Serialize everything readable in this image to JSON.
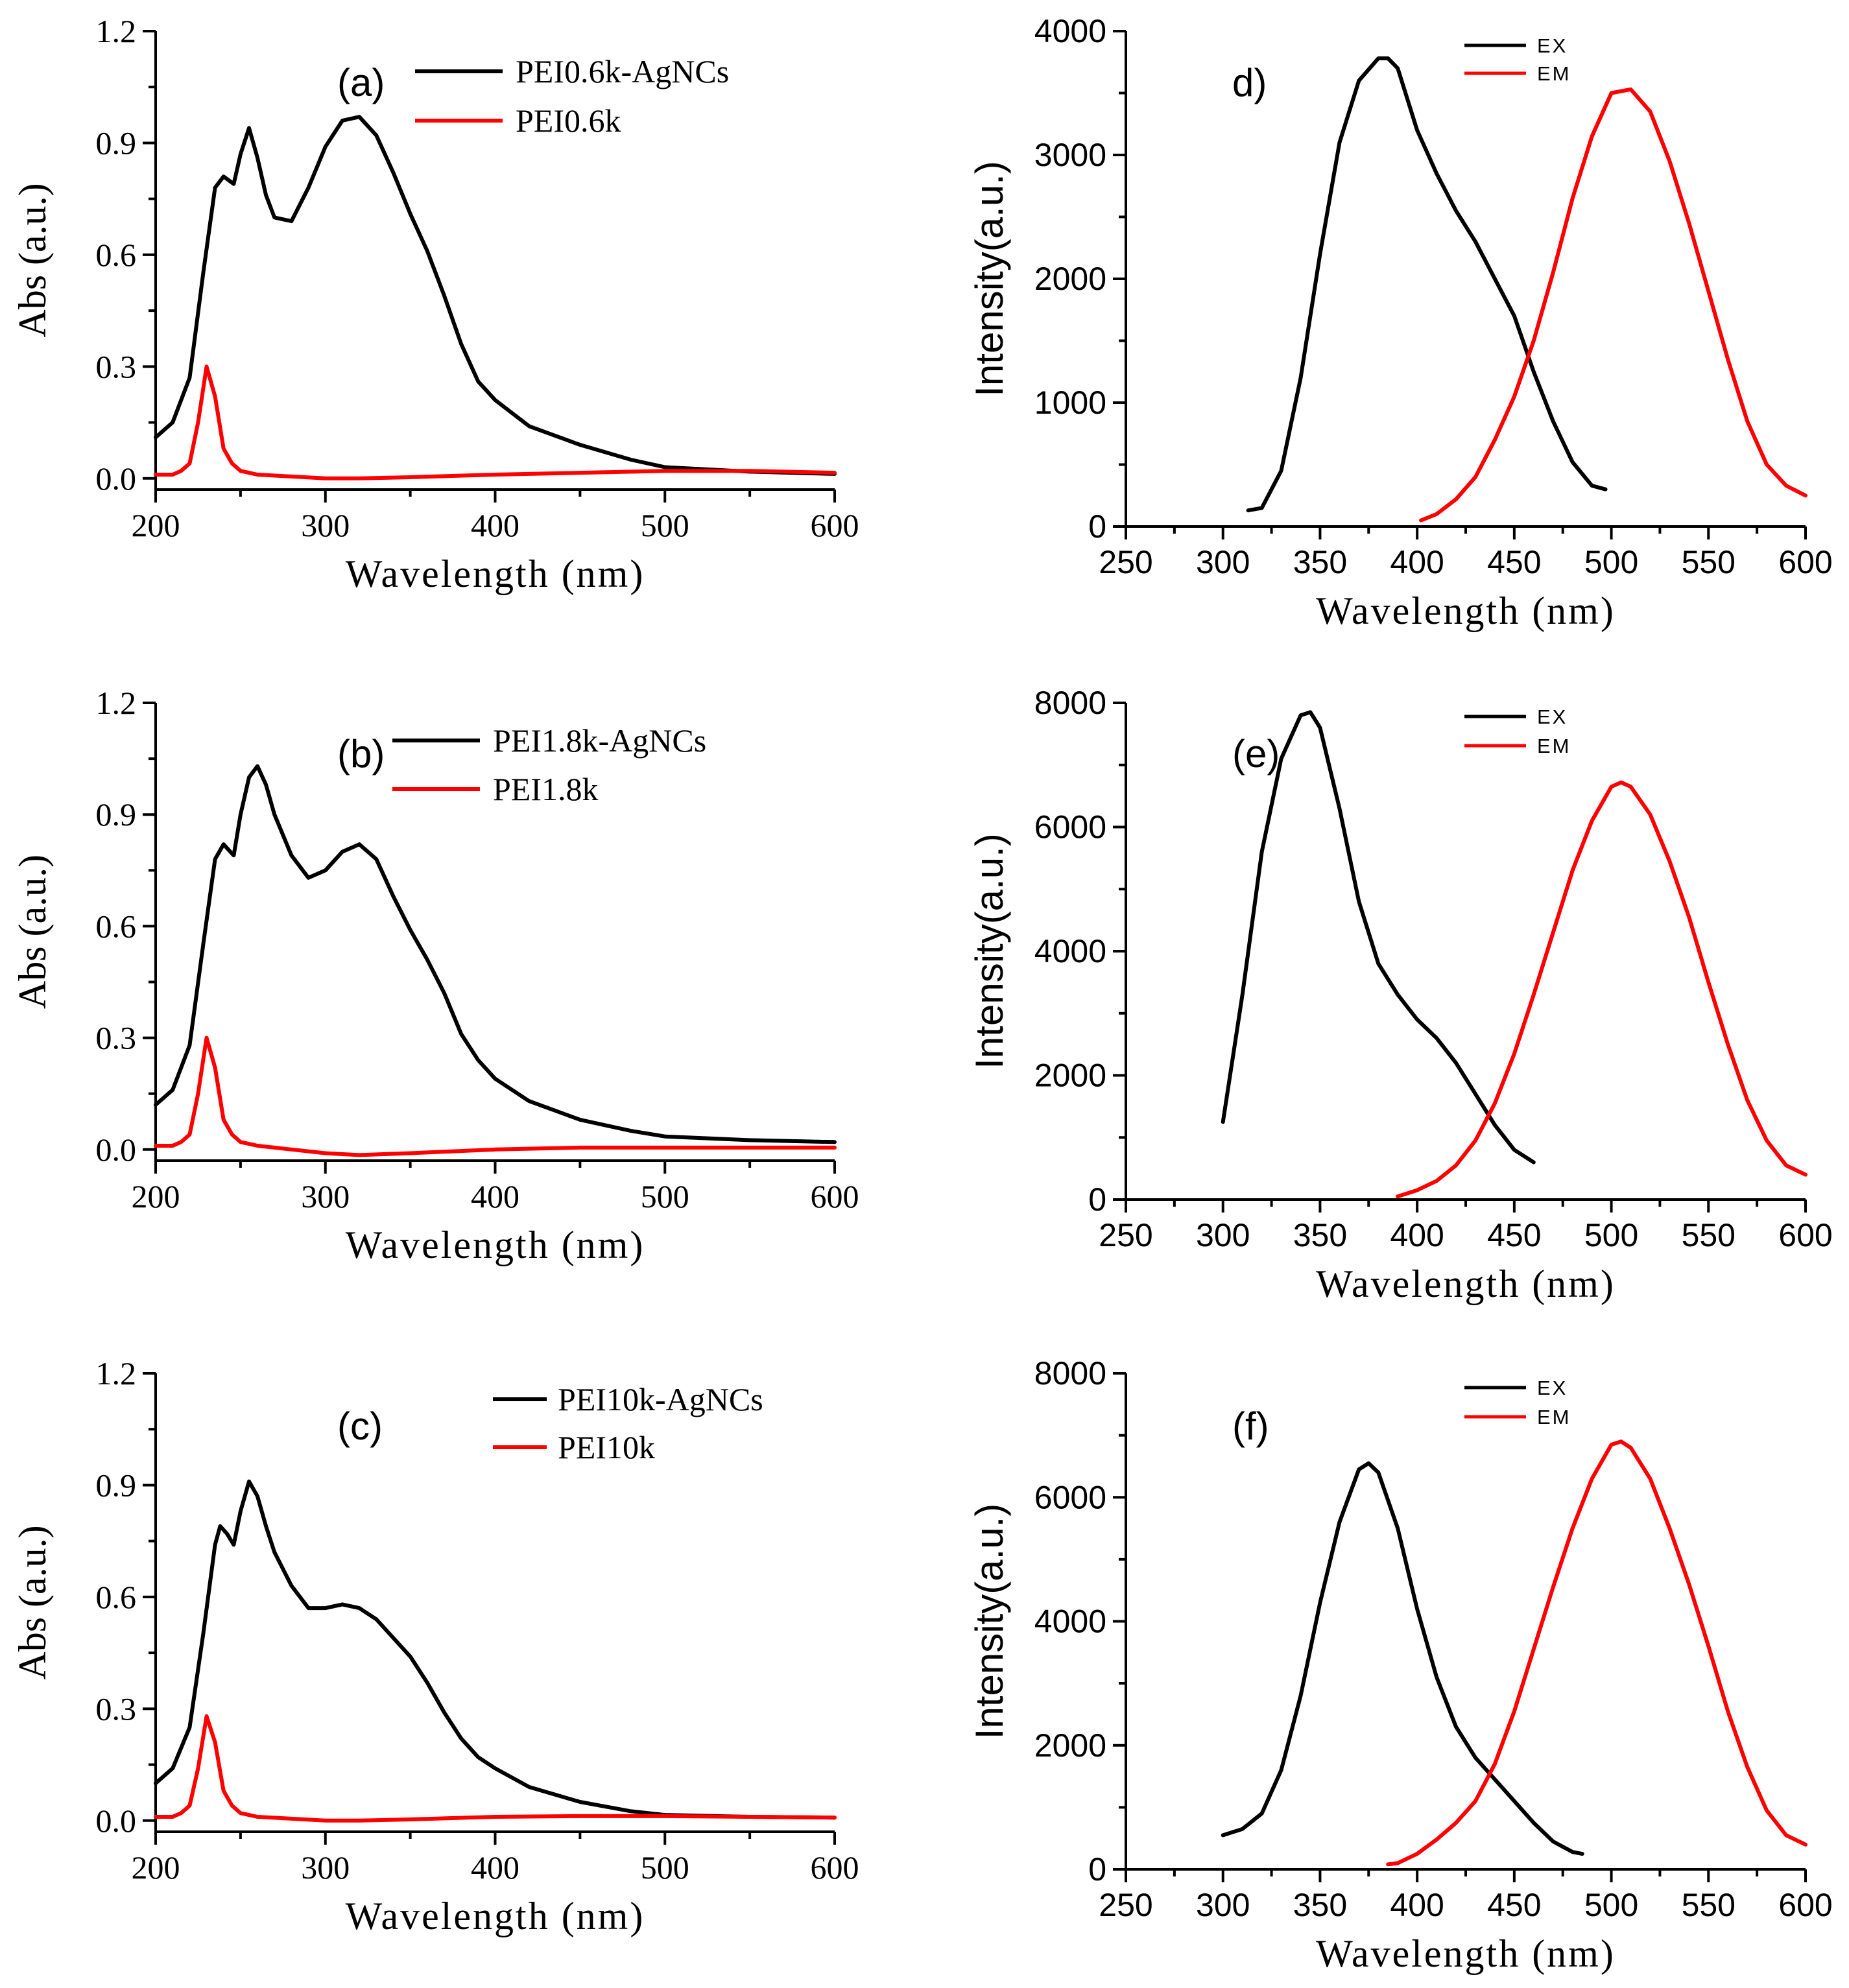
{
  "colors": {
    "black_series": "#000000",
    "red_series": "#ff0000",
    "axis": "#000000"
  },
  "chart_data": [
    {
      "id": "a",
      "type": "line",
      "label": "(a)",
      "xlabel": "Wavelength (nm)",
      "ylabel": "Abs (a.u.)",
      "xlim": [
        200,
        600
      ],
      "ylim": [
        -0.03,
        1.2
      ],
      "xticks": [
        "200",
        "300",
        "400",
        "500",
        "600"
      ],
      "yticks": [
        "0.0",
        "0.3",
        "0.6",
        "0.9",
        "1.2"
      ],
      "legend_style": "big",
      "series": [
        {
          "name": "PEI0.6k-AgNCs",
          "color": "black",
          "x": [
            200,
            210,
            220,
            228,
            235,
            240,
            246,
            250,
            255,
            260,
            265,
            270,
            280,
            290,
            300,
            310,
            320,
            330,
            340,
            350,
            360,
            370,
            380,
            390,
            400,
            420,
            450,
            480,
            500,
            550,
            600
          ],
          "y": [
            0.11,
            0.15,
            0.27,
            0.55,
            0.78,
            0.81,
            0.79,
            0.87,
            0.94,
            0.86,
            0.76,
            0.7,
            0.69,
            0.78,
            0.89,
            0.96,
            0.97,
            0.92,
            0.82,
            0.71,
            0.61,
            0.49,
            0.36,
            0.26,
            0.21,
            0.14,
            0.09,
            0.05,
            0.03,
            0.018,
            0.012
          ]
        },
        {
          "name": "PEI0.6k",
          "color": "red",
          "x": [
            200,
            210,
            215,
            220,
            225,
            230,
            235,
            240,
            245,
            250,
            260,
            280,
            300,
            320,
            350,
            400,
            450,
            500,
            550,
            600
          ],
          "y": [
            0.01,
            0.01,
            0.02,
            0.04,
            0.15,
            0.3,
            0.22,
            0.08,
            0.04,
            0.02,
            0.01,
            0.005,
            0.0,
            0.0,
            0.003,
            0.01,
            0.015,
            0.02,
            0.02,
            0.015
          ]
        }
      ]
    },
    {
      "id": "b",
      "type": "line",
      "label": "(b)",
      "xlabel": "Wavelength (nm)",
      "ylabel": "Abs (a.u.)",
      "xlim": [
        200,
        600
      ],
      "ylim": [
        -0.03,
        1.2
      ],
      "xticks": [
        "200",
        "300",
        "400",
        "500",
        "600"
      ],
      "yticks": [
        "0.0",
        "0.3",
        "0.6",
        "0.9",
        "1.2"
      ],
      "legend_style": "big",
      "series": [
        {
          "name": "PEI1.8k-AgNCs",
          "color": "black",
          "x": [
            200,
            210,
            220,
            228,
            235,
            240,
            246,
            250,
            255,
            260,
            265,
            270,
            280,
            290,
            300,
            310,
            320,
            330,
            340,
            350,
            360,
            370,
            380,
            390,
            400,
            420,
            450,
            480,
            500,
            550,
            600
          ],
          "y": [
            0.12,
            0.16,
            0.28,
            0.55,
            0.78,
            0.82,
            0.79,
            0.9,
            1.0,
            1.03,
            0.98,
            0.9,
            0.79,
            0.73,
            0.75,
            0.8,
            0.82,
            0.78,
            0.68,
            0.59,
            0.51,
            0.42,
            0.31,
            0.24,
            0.19,
            0.13,
            0.08,
            0.05,
            0.035,
            0.025,
            0.02
          ]
        },
        {
          "name": "PEI1.8k",
          "color": "red",
          "x": [
            200,
            210,
            215,
            220,
            225,
            230,
            235,
            240,
            245,
            250,
            260,
            280,
            300,
            320,
            350,
            400,
            450,
            500,
            550,
            600
          ],
          "y": [
            0.01,
            0.01,
            0.02,
            0.04,
            0.15,
            0.3,
            0.22,
            0.08,
            0.04,
            0.02,
            0.01,
            0.0,
            -0.01,
            -0.015,
            -0.01,
            0.0,
            0.005,
            0.005,
            0.005,
            0.005
          ]
        }
      ]
    },
    {
      "id": "c",
      "type": "line",
      "label": "(c)",
      "xlabel": "Wavelength (nm)",
      "ylabel": "Abs (a.u.)",
      "xlim": [
        200,
        600
      ],
      "ylim": [
        -0.03,
        1.2
      ],
      "xticks": [
        "200",
        "300",
        "400",
        "500",
        "600"
      ],
      "yticks": [
        "0.0",
        "0.3",
        "0.6",
        "0.9",
        "1.2"
      ],
      "legend_style": "big",
      "series": [
        {
          "name": "PEI10k-AgNCs",
          "color": "black",
          "x": [
            200,
            210,
            220,
            228,
            235,
            238,
            242,
            246,
            250,
            255,
            260,
            265,
            270,
            280,
            290,
            300,
            310,
            320,
            330,
            340,
            350,
            360,
            370,
            380,
            390,
            400,
            420,
            450,
            480,
            500,
            550,
            600
          ],
          "y": [
            0.1,
            0.14,
            0.25,
            0.5,
            0.74,
            0.79,
            0.77,
            0.74,
            0.83,
            0.91,
            0.87,
            0.79,
            0.72,
            0.63,
            0.57,
            0.57,
            0.58,
            0.57,
            0.54,
            0.49,
            0.44,
            0.37,
            0.29,
            0.22,
            0.17,
            0.14,
            0.09,
            0.05,
            0.025,
            0.015,
            0.01,
            0.008
          ]
        },
        {
          "name": "PEI10k",
          "color": "red",
          "x": [
            200,
            210,
            215,
            220,
            225,
            230,
            235,
            240,
            245,
            250,
            260,
            280,
            300,
            320,
            350,
            400,
            450,
            500,
            550,
            600
          ],
          "y": [
            0.01,
            0.01,
            0.02,
            0.04,
            0.14,
            0.28,
            0.21,
            0.08,
            0.04,
            0.02,
            0.01,
            0.005,
            0.0,
            0.0,
            0.003,
            0.01,
            0.012,
            0.012,
            0.01,
            0.008
          ]
        }
      ]
    },
    {
      "id": "d",
      "type": "line",
      "label": "d)",
      "xlabel": "Wavelength (nm)",
      "ylabel": "Intensity(a.u.)",
      "xlim": [
        250,
        600
      ],
      "ylim": [
        0,
        4000
      ],
      "xticks": [
        "250",
        "300",
        "350",
        "400",
        "450",
        "500",
        "550",
        "600"
      ],
      "yticks": [
        "0",
        "1000",
        "2000",
        "3000",
        "4000"
      ],
      "legend_style": "small",
      "series": [
        {
          "name": "EX",
          "color": "black",
          "x": [
            313,
            320,
            330,
            340,
            350,
            360,
            370,
            380,
            385,
            390,
            400,
            410,
            420,
            430,
            440,
            450,
            460,
            470,
            480,
            490,
            497
          ],
          "y": [
            130,
            150,
            450,
            1200,
            2200,
            3100,
            3600,
            3780,
            3780,
            3700,
            3200,
            2850,
            2550,
            2300,
            2000,
            1700,
            1250,
            850,
            520,
            330,
            300
          ]
        },
        {
          "name": "EM",
          "color": "red",
          "x": [
            402,
            410,
            420,
            430,
            440,
            450,
            460,
            470,
            480,
            490,
            500,
            510,
            520,
            530,
            540,
            550,
            560,
            570,
            580,
            590,
            600
          ],
          "y": [
            50,
            100,
            220,
            400,
            700,
            1050,
            1500,
            2050,
            2650,
            3150,
            3500,
            3530,
            3350,
            2950,
            2450,
            1900,
            1350,
            850,
            500,
            330,
            250
          ]
        }
      ]
    },
    {
      "id": "e",
      "type": "line",
      "label": "(e)",
      "xlabel": "Wavelength (nm)",
      "ylabel": "Intensity(a.u.)",
      "xlim": [
        250,
        600
      ],
      "ylim": [
        0,
        8000
      ],
      "xticks": [
        "250",
        "300",
        "350",
        "400",
        "450",
        "500",
        "550",
        "600"
      ],
      "yticks": [
        "0",
        "2000",
        "4000",
        "6000",
        "8000"
      ],
      "legend_style": "small",
      "series": [
        {
          "name": "EX",
          "color": "black",
          "x": [
            300,
            310,
            320,
            330,
            340,
            345,
            350,
            360,
            370,
            380,
            390,
            400,
            410,
            420,
            430,
            440,
            450,
            460
          ],
          "y": [
            1250,
            3300,
            5600,
            7100,
            7800,
            7850,
            7600,
            6300,
            4800,
            3800,
            3300,
            2900,
            2600,
            2200,
            1700,
            1200,
            800,
            600
          ]
        },
        {
          "name": "EM",
          "color": "red",
          "x": [
            390,
            400,
            410,
            420,
            430,
            440,
            450,
            460,
            470,
            480,
            490,
            500,
            505,
            510,
            520,
            530,
            540,
            550,
            560,
            570,
            580,
            590,
            600
          ],
          "y": [
            50,
            150,
            300,
            550,
            950,
            1550,
            2350,
            3300,
            4300,
            5300,
            6100,
            6650,
            6720,
            6650,
            6200,
            5450,
            4550,
            3500,
            2500,
            1600,
            950,
            550,
            400
          ]
        }
      ]
    },
    {
      "id": "f",
      "type": "line",
      "label": "(f)",
      "xlabel": "Wavelength (nm)",
      "ylabel": "Intensity(a.u.)",
      "xlim": [
        250,
        600
      ],
      "ylim": [
        0,
        8000
      ],
      "xticks": [
        "250",
        "300",
        "350",
        "400",
        "450",
        "500",
        "550",
        "600"
      ],
      "yticks": [
        "0",
        "2000",
        "4000",
        "6000",
        "8000"
      ],
      "legend_style": "small",
      "series": [
        {
          "name": "EX",
          "color": "black",
          "x": [
            300,
            310,
            320,
            330,
            340,
            350,
            360,
            370,
            375,
            380,
            390,
            400,
            410,
            420,
            430,
            440,
            450,
            460,
            470,
            480,
            485
          ],
          "y": [
            550,
            650,
            900,
            1600,
            2800,
            4300,
            5600,
            6450,
            6550,
            6400,
            5500,
            4200,
            3100,
            2300,
            1800,
            1450,
            1100,
            750,
            450,
            280,
            250
          ]
        },
        {
          "name": "EM",
          "color": "red",
          "x": [
            385,
            390,
            400,
            410,
            420,
            430,
            440,
            450,
            460,
            470,
            480,
            490,
            500,
            505,
            510,
            520,
            530,
            540,
            550,
            560,
            570,
            580,
            590,
            600
          ],
          "y": [
            80,
            100,
            250,
            480,
            750,
            1100,
            1700,
            2550,
            3550,
            4550,
            5500,
            6300,
            6850,
            6900,
            6800,
            6300,
            5500,
            4600,
            3600,
            2550,
            1650,
            950,
            550,
            400
          ]
        }
      ]
    }
  ]
}
